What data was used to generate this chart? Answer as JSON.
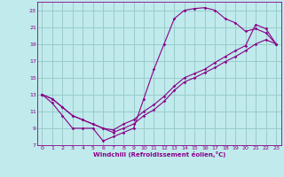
{
  "xlabel": "Windchill (Refroidissement éolien,°C)",
  "bg_color": "#c0eaec",
  "grid_color": "#99cccc",
  "line_color": "#880088",
  "xlim": [
    -0.5,
    23.5
  ],
  "ylim": [
    7,
    24
  ],
  "xticks": [
    0,
    1,
    2,
    3,
    4,
    5,
    6,
    7,
    8,
    9,
    10,
    11,
    12,
    13,
    14,
    15,
    16,
    17,
    18,
    19,
    20,
    21,
    22,
    23
  ],
  "yticks": [
    7,
    9,
    11,
    13,
    15,
    17,
    19,
    21,
    23
  ],
  "curve1_x": [
    0,
    1,
    2,
    3,
    4,
    5,
    6,
    7,
    8,
    9,
    10,
    11,
    12,
    13,
    14,
    15,
    16,
    17,
    18,
    19,
    20,
    21,
    22,
    23
  ],
  "curve1_y": [
    13,
    12,
    10.5,
    9,
    9,
    9,
    7.5,
    8,
    8.5,
    9,
    12.5,
    16,
    19,
    22,
    23,
    23.2,
    23.3,
    23,
    22,
    21.5,
    20.5,
    20.8,
    20.3,
    19
  ],
  "curve2_x": [
    0,
    1,
    2,
    3,
    4,
    5,
    6,
    7,
    8,
    9,
    10,
    11,
    12,
    13,
    14,
    15,
    16,
    17,
    18,
    19,
    20,
    21,
    22,
    23
  ],
  "curve2_y": [
    13,
    12.5,
    11.5,
    10.5,
    10,
    9.5,
    9.0,
    8.8,
    9.5,
    10.0,
    11.0,
    11.8,
    12.8,
    14.0,
    15.0,
    15.5,
    16.0,
    16.8,
    17.5,
    18.2,
    18.8,
    21.3,
    20.8,
    19
  ],
  "curve3_x": [
    0,
    1,
    2,
    3,
    4,
    5,
    6,
    7,
    8,
    9,
    10,
    11,
    12,
    13,
    14,
    15,
    16,
    17,
    18,
    19,
    20,
    21,
    22,
    23
  ],
  "curve3_y": [
    13,
    12.5,
    11.5,
    10.5,
    10,
    9.5,
    9.0,
    8.5,
    9.0,
    9.5,
    10.5,
    11.2,
    12.2,
    13.5,
    14.5,
    15.0,
    15.6,
    16.2,
    16.9,
    17.5,
    18.2,
    19.0,
    19.5,
    19
  ]
}
